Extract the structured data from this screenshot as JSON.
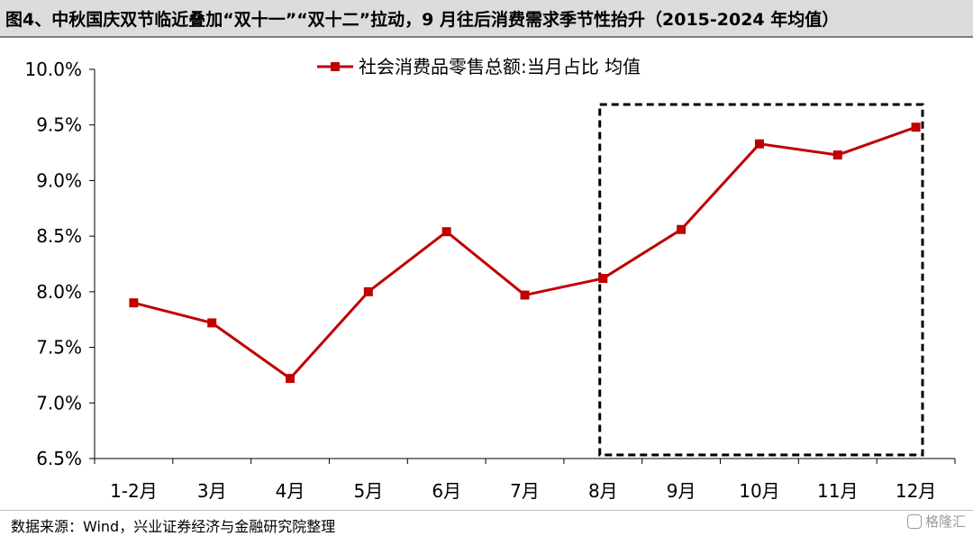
{
  "title": "图4、中秋国庆双节临近叠加“双十一”“双十二”拉动，9 月往后消费需求季节性抬升（2015-2024 年均值）",
  "source": "数据来源：Wind，兴业证券经济与金融研究院整理",
  "watermark": "格隆汇",
  "chart_data": {
    "type": "line",
    "categories": [
      "1-2月",
      "3月",
      "4月",
      "5月",
      "6月",
      "7月",
      "8月",
      "9月",
      "10月",
      "11月",
      "12月"
    ],
    "series": [
      {
        "name": "社会消费品零售总额:当月占比 均值",
        "color": "#c00000",
        "values": [
          7.9,
          7.72,
          7.22,
          8.0,
          8.54,
          7.97,
          8.12,
          8.56,
          9.33,
          9.23,
          9.48
        ]
      }
    ],
    "ylim": [
      6.5,
      10.0
    ],
    "yticks": [
      "6.5%",
      "7.0%",
      "7.5%",
      "8.0%",
      "8.5%",
      "9.0%",
      "9.5%",
      "10.0%"
    ],
    "xlabel": "",
    "ylabel": "",
    "grid": false,
    "legend_position": "top",
    "highlight_range": [
      "9月",
      "12月"
    ]
  }
}
